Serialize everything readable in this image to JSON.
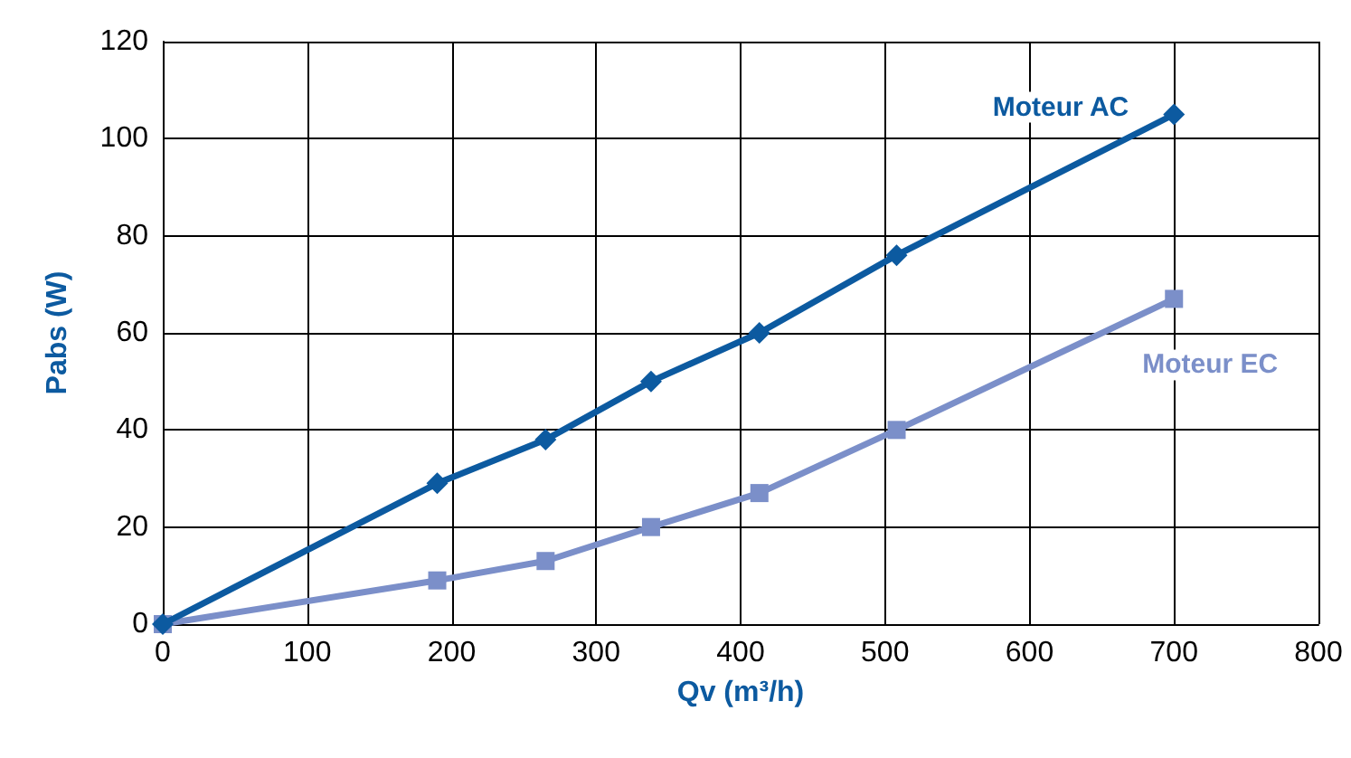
{
  "chart_data": {
    "type": "line",
    "xlabel": "Qv (m³/h)",
    "ylabel": "Pabs (W)",
    "xlim": [
      0,
      800
    ],
    "xticks": [
      0,
      100,
      200,
      300,
      400,
      500,
      600,
      700,
      800
    ],
    "ylim": [
      0,
      120
    ],
    "yticks": [
      0,
      20,
      40,
      60,
      80,
      100,
      120
    ],
    "grid": true,
    "legend": false,
    "x": [
      0,
      190,
      265,
      338,
      413,
      508,
      700
    ],
    "series": [
      {
        "name": "Moteur AC",
        "color": "#0c5aa0",
        "marker": "diamond",
        "values": [
          0,
          29,
          38,
          50,
          60,
          76,
          105
        ]
      },
      {
        "name": "Moteur EC",
        "color": "#7b8fc9",
        "marker": "square",
        "values": [
          0,
          9,
          13,
          20,
          27,
          40,
          67
        ]
      }
    ]
  }
}
